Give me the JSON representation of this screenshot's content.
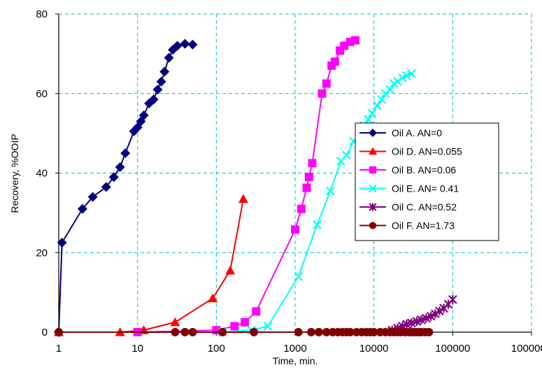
{
  "chart_data": {
    "type": "scatter",
    "x_scale": "log",
    "xlim": [
      1,
      1000000
    ],
    "ylim": [
      0,
      80
    ],
    "x_ticks": [
      "1",
      "10",
      "100",
      "1000",
      "10000",
      "100000",
      "1000000"
    ],
    "y_ticks": [
      "0",
      "20",
      "40",
      "60",
      "80"
    ],
    "xlabel": "Time, min.",
    "ylabel": "Recovery, %OOIP",
    "grid": true,
    "legend_position": "right",
    "series": [
      {
        "name": "Oil A. AN=0",
        "color": "#000080",
        "marker": "diamond",
        "points": [
          [
            1,
            0
          ],
          [
            1.1,
            22.5
          ],
          [
            2,
            31
          ],
          [
            2.7,
            34
          ],
          [
            4,
            36.5
          ],
          [
            5,
            39
          ],
          [
            6,
            41.5
          ],
          [
            7,
            45
          ],
          [
            9,
            50.5
          ],
          [
            10,
            51.5
          ],
          [
            11,
            53
          ],
          [
            12,
            54.5
          ],
          [
            14,
            57.5
          ],
          [
            16,
            58.5
          ],
          [
            18,
            61
          ],
          [
            20,
            63
          ],
          [
            22,
            65.5
          ],
          [
            25,
            69
          ],
          [
            28,
            71
          ],
          [
            32,
            72
          ],
          [
            40,
            72.5
          ],
          [
            50,
            72.3
          ]
        ]
      },
      {
        "name": "Oil D. AN=0.055",
        "color": "#ff0000",
        "marker": "triangle",
        "points": [
          [
            1,
            0
          ],
          [
            6,
            0
          ],
          [
            12,
            0.5
          ],
          [
            30,
            2.5
          ],
          [
            90,
            8.5
          ],
          [
            150,
            15.5
          ],
          [
            220,
            33.5
          ]
        ]
      },
      {
        "name": "Oil B. AN=0.06",
        "color": "#ff00ff",
        "marker": "square",
        "points": [
          [
            10,
            0
          ],
          [
            100,
            0.5
          ],
          [
            170,
            1.5
          ],
          [
            230,
            2.5
          ],
          [
            320,
            5.2
          ],
          [
            1000,
            25.8
          ],
          [
            1200,
            31
          ],
          [
            1400,
            36.3
          ],
          [
            1500,
            39
          ],
          [
            1650,
            42.5
          ],
          [
            2200,
            60
          ],
          [
            2500,
            62.5
          ],
          [
            2900,
            67
          ],
          [
            3200,
            68
          ],
          [
            3700,
            70.8
          ],
          [
            4200,
            72
          ],
          [
            5000,
            73
          ],
          [
            5800,
            73.4
          ]
        ]
      },
      {
        "name": "Oil E. AN= 0.41",
        "color": "#00ffff",
        "marker": "x",
        "points": [
          [
            120,
            0
          ],
          [
            280,
            0.5
          ],
          [
            450,
            1.5
          ],
          [
            1100,
            14
          ],
          [
            1900,
            27
          ],
          [
            2800,
            35.5
          ],
          [
            3800,
            43
          ],
          [
            4500,
            44.5
          ],
          [
            5500,
            48
          ],
          [
            6500,
            50
          ],
          [
            7500,
            52
          ],
          [
            8500,
            53.5
          ],
          [
            9500,
            55
          ],
          [
            11000,
            57
          ],
          [
            12500,
            58.5
          ],
          [
            14000,
            60
          ],
          [
            16000,
            61
          ],
          [
            18000,
            62.5
          ],
          [
            20000,
            63
          ],
          [
            23000,
            64
          ],
          [
            26000,
            64.5
          ],
          [
            30000,
            65
          ]
        ]
      },
      {
        "name": "Oil C. AN=0.52",
        "color": "#800080",
        "marker": "asterisk",
        "points": [
          [
            17000,
            0.5
          ],
          [
            20000,
            1
          ],
          [
            23000,
            1.5
          ],
          [
            26000,
            2
          ],
          [
            30000,
            2.3
          ],
          [
            35000,
            2.7
          ],
          [
            40000,
            3.1
          ],
          [
            46000,
            3.5
          ],
          [
            53000,
            4
          ],
          [
            60000,
            4.6
          ],
          [
            68000,
            5.3
          ],
          [
            77000,
            6
          ],
          [
            88000,
            7
          ],
          [
            100000,
            8.2
          ]
        ]
      },
      {
        "name": "Oil F. AN=1.73",
        "color": "#800000",
        "marker": "circle",
        "points": [
          [
            1,
            0
          ],
          [
            30,
            0
          ],
          [
            40,
            0
          ],
          [
            50,
            0
          ],
          [
            120,
            0
          ],
          [
            300,
            0
          ],
          [
            1100,
            0
          ],
          [
            1600,
            0
          ],
          [
            2000,
            0
          ],
          [
            2500,
            0
          ],
          [
            3000,
            0
          ],
          [
            3500,
            0
          ],
          [
            4000,
            0
          ],
          [
            4500,
            0
          ],
          [
            5000,
            0
          ],
          [
            6000,
            0
          ],
          [
            7000,
            0
          ],
          [
            8000,
            0
          ],
          [
            9000,
            0
          ],
          [
            10000,
            0
          ],
          [
            12000,
            0
          ],
          [
            14000,
            0
          ],
          [
            16000,
            0
          ],
          [
            18000,
            0
          ],
          [
            20000,
            0
          ],
          [
            22000,
            0
          ],
          [
            25000,
            0
          ],
          [
            28000,
            0
          ],
          [
            31000,
            0
          ],
          [
            34000,
            0
          ],
          [
            37000,
            0
          ],
          [
            40000,
            0
          ],
          [
            45000,
            0
          ],
          [
            50000,
            0
          ]
        ]
      }
    ]
  }
}
